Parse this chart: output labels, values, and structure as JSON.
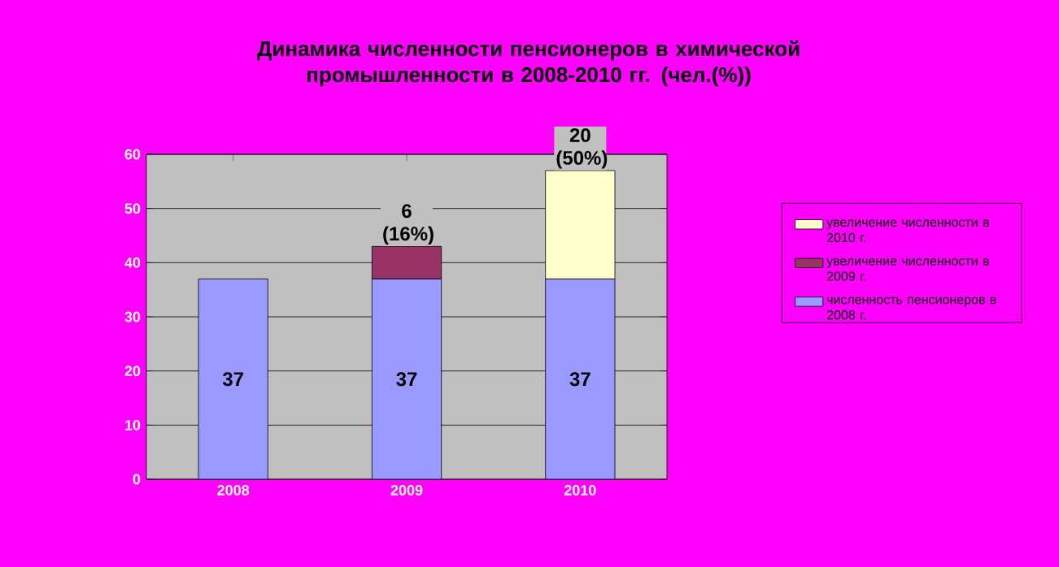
{
  "chart_data": {
    "type": "bar",
    "stacked": true,
    "title": "Динамика численности пенсионеров в химической промышленности в 2008-2010 гг. (чел.(%))",
    "categories": [
      "2008",
      "2009",
      "2010"
    ],
    "series": [
      {
        "name": "численность пенсионеров в 2008 г.",
        "color": "#9999ff",
        "values": [
          37,
          37,
          37
        ],
        "value_labels": [
          "37",
          "37",
          "37"
        ]
      },
      {
        "name": "увеличение численности в 2009 г.",
        "color": "#993366",
        "values": [
          null,
          6,
          null
        ],
        "value_labels": [
          null,
          "6 (16%)",
          null
        ]
      },
      {
        "name": "увеличение численности в 2010 г.",
        "color": "#ffffcc",
        "values": [
          null,
          null,
          20
        ],
        "value_labels": [
          null,
          null,
          "20 (50%)"
        ]
      }
    ],
    "ylim": [
      0,
      60
    ],
    "yticks": [
      0,
      10,
      20,
      30,
      40,
      50,
      60
    ],
    "grid": "y",
    "legend": "right"
  }
}
